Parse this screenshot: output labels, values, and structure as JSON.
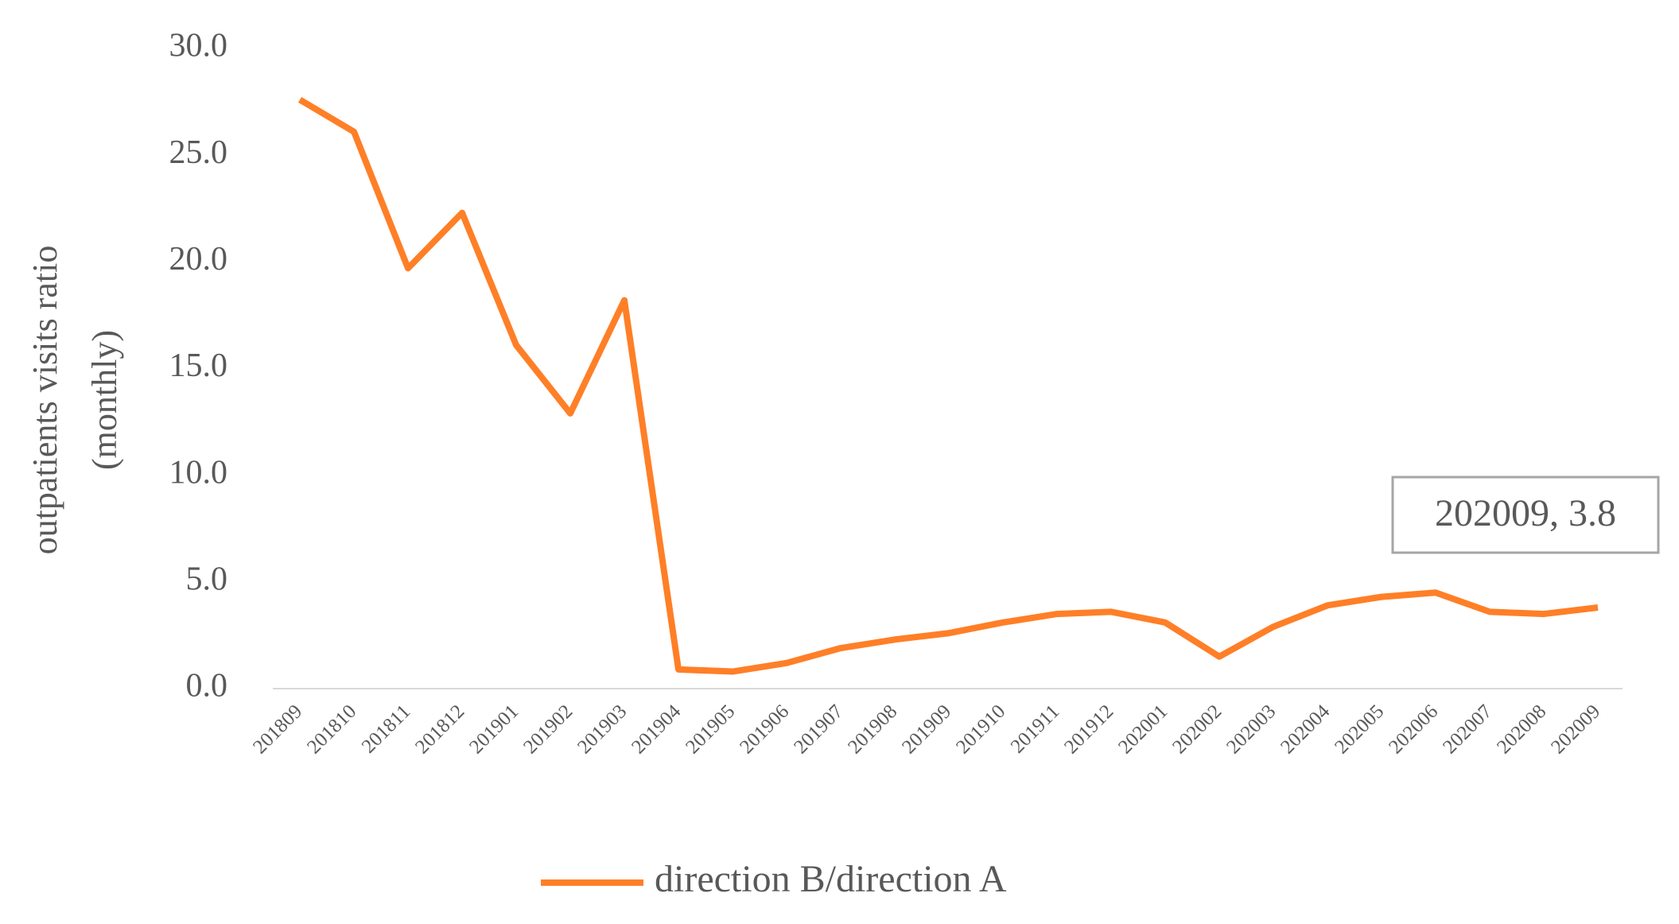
{
  "chart_data": {
    "type": "line",
    "ylabel": [
      "outpatients visits ratio",
      "(monthly)"
    ],
    "categories": [
      "201809",
      "201810",
      "201811",
      "201812",
      "201901",
      "201902",
      "201903",
      "201904",
      "201905",
      "201906",
      "201907",
      "201908",
      "201909",
      "201910",
      "201911",
      "201912",
      "202001",
      "202002",
      "202003",
      "202004",
      "202005",
      "202006",
      "202007",
      "202008",
      "202009"
    ],
    "series": [
      {
        "name": "direction B/direction A",
        "color": "#ff7f27",
        "values": [
          27.6,
          26.1,
          19.7,
          22.3,
          16.1,
          12.9,
          18.2,
          0.9,
          0.8,
          1.2,
          1.9,
          2.3,
          2.6,
          3.1,
          3.5,
          3.6,
          3.1,
          1.5,
          2.9,
          3.9,
          4.3,
          4.5,
          3.6,
          3.5,
          3.8
        ]
      }
    ],
    "annotation": "202009, 3.8",
    "ylim": [
      0,
      30
    ],
    "yticks": [
      {
        "value": 0,
        "label": "0.0"
      },
      {
        "value": 5,
        "label": "5.0"
      },
      {
        "value": 10,
        "label": "10.0"
      },
      {
        "value": 15,
        "label": "15.0"
      },
      {
        "value": 20,
        "label": "20.0"
      },
      {
        "value": 25,
        "label": "25.0"
      },
      {
        "value": 30,
        "label": "30.0"
      }
    ],
    "grid": false,
    "legend": "bottom"
  }
}
